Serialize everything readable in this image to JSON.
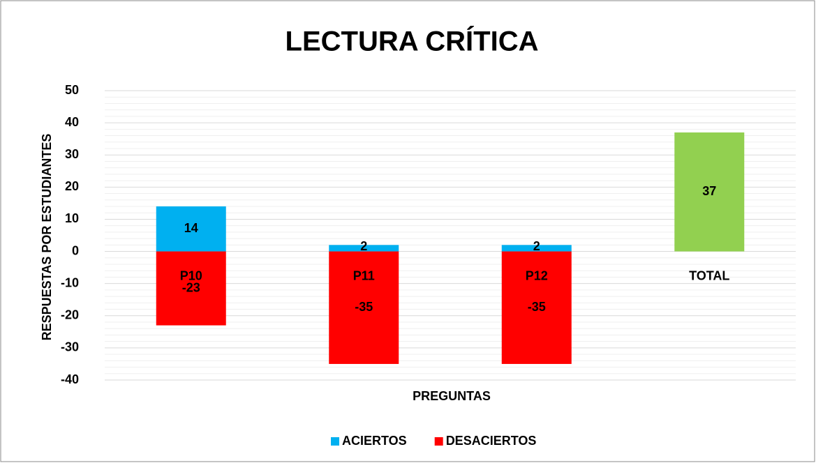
{
  "chart_data": {
    "type": "bar",
    "title": "LECTURA CRÍTICA",
    "x_label": "PREGUNTAS",
    "y_label": "RESPUESTAS POR ESTUDIANTES",
    "categories": [
      "P10",
      "P11",
      "P12",
      "TOTAL"
    ],
    "series": [
      {
        "name": "ACIERTOS",
        "color": "#00b0f0",
        "point_colors": [
          "#00b0f0",
          "#00b0f0",
          "#00b0f0",
          "#92d050"
        ],
        "values": [
          14,
          2,
          2,
          37
        ]
      },
      {
        "name": "DESACIERTOS",
        "color": "#ff0000",
        "values": [
          -23,
          -35,
          -35,
          null
        ]
      }
    ],
    "ylim": [
      -40,
      50
    ],
    "yticks": [
      -40,
      -30,
      -20,
      -10,
      0,
      10,
      20,
      30,
      40,
      50
    ],
    "grid": true,
    "legend": "bottom"
  }
}
